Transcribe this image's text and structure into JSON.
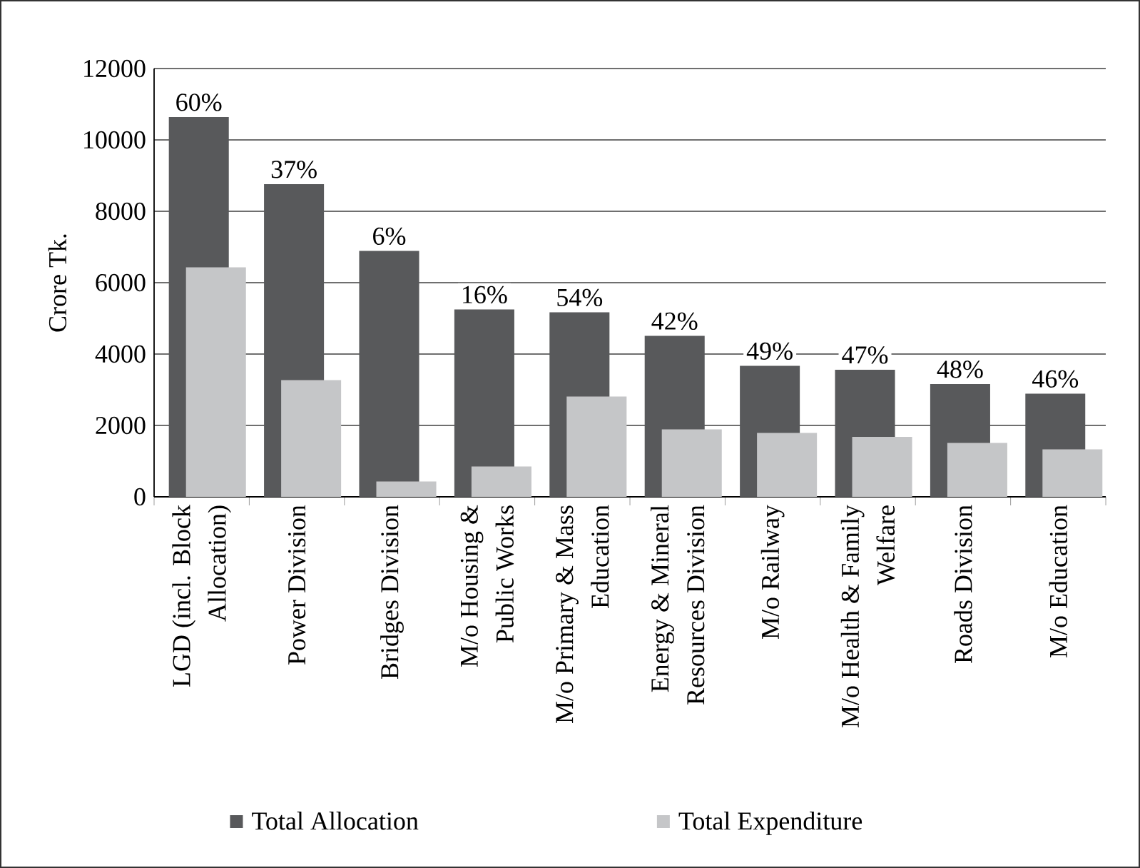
{
  "chart_data": {
    "type": "bar",
    "ylabel": "Crore Tk.",
    "categories": [
      "LGD (incl. Block Allocation)",
      "Power Division",
      "Bridges Division",
      "M/o Housing & Public Works",
      "M/o Primary & Mass Education",
      "Energy & Mineral Resources Division",
      "M/o Railway",
      "M/o Health & Family Welfare",
      "Roads Division",
      "M/o Education"
    ],
    "series": [
      {
        "name": "Total Allocation",
        "color": "#58595b",
        "values": [
          10640,
          8760,
          6890,
          5250,
          5170,
          4510,
          3670,
          3560,
          3160,
          2890
        ]
      },
      {
        "name": "Total Expenditure",
        "color": "#c5c6c8",
        "values": [
          6430,
          3270,
          430,
          850,
          2810,
          1890,
          1790,
          1680,
          1510,
          1330
        ]
      }
    ],
    "ylim": [
      0,
      12000
    ],
    "yticks": [
      0,
      2000,
      4000,
      6000,
      8000,
      10000,
      12000
    ],
    "grid": "y",
    "legend": "bottom",
    "annotations": [
      {
        "text": "60%",
        "x": "LGD (incl. Block Allocation)",
        "y": 10640
      },
      {
        "text": "37%",
        "x": "Power Division",
        "y": 8760
      },
      {
        "text": "6%",
        "x": "Bridges Division",
        "y": 6890
      },
      {
        "text": "16%",
        "x": "M/o Housing & Public Works",
        "y": 5250
      },
      {
        "text": "54%",
        "x": "M/o Primary & Mass Education",
        "y": 5170
      },
      {
        "text": "42%",
        "x": "Energy & Mineral Resources Division",
        "y": 4510
      },
      {
        "text": "49%",
        "x": "M/o Railway",
        "y": 3670
      },
      {
        "text": "47%",
        "x": "M/o Health & Family Welfare",
        "y": 3560
      },
      {
        "text": "48%",
        "x": "Roads Division",
        "y": 3160
      },
      {
        "text": "46%",
        "x": "M/o Education",
        "y": 2890
      }
    ]
  }
}
